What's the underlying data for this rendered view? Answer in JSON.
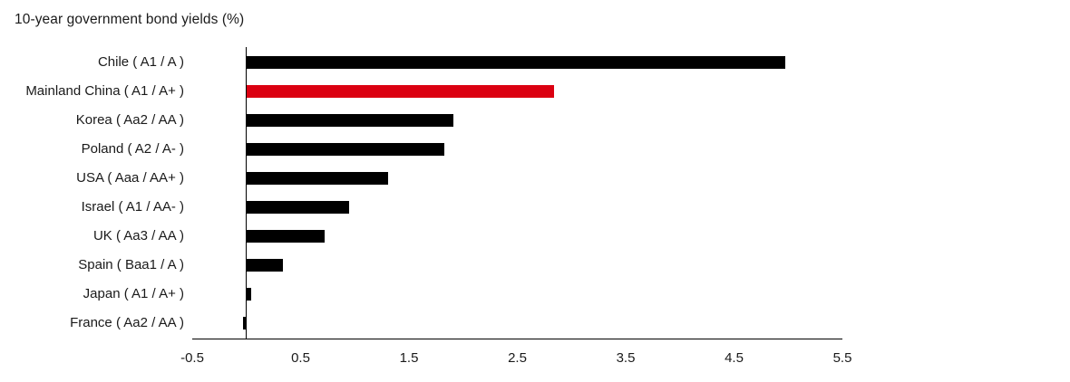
{
  "title": "10-year government bond yields (%)",
  "colors": {
    "bar_default": "#000000",
    "bar_highlight": "#db0011",
    "axis": "#000000",
    "text": "#1a1a1a",
    "background": "#ffffff"
  },
  "chart_data": {
    "type": "bar",
    "orientation": "horizontal",
    "title": "10-year government bond yields (%)",
    "categories": [
      "Chile ( A1 / A )",
      "Mainland China ( A1 / A+ )",
      "Korea ( Aa2 / AA )",
      "Poland ( A2 / A- )",
      "USA ( Aaa / AA+ )",
      "Israel ( A1 / AA- )",
      "UK ( Aa3 / AA )",
      "Spain ( Baa1 / A )",
      "Japan ( A1 / A+ )",
      "France ( Aa2 / AA )"
    ],
    "values": [
      4.97,
      2.84,
      1.91,
      1.83,
      1.31,
      0.95,
      0.72,
      0.34,
      0.04,
      -0.03
    ],
    "highlight_index": 1,
    "highlight_category": "Mainland China ( A1 / A+ )",
    "xlabel": "",
    "ylabel": "",
    "xlim": [
      -0.5,
      5.5
    ],
    "x_ticks": [
      -0.5,
      0.5,
      1.5,
      2.5,
      3.5,
      4.5,
      5.5
    ],
    "x_tick_labels": [
      "-0.5",
      "0.5",
      "1.5",
      "2.5",
      "3.5",
      "4.5",
      "5.5"
    ],
    "grid": false,
    "legend": false
  }
}
